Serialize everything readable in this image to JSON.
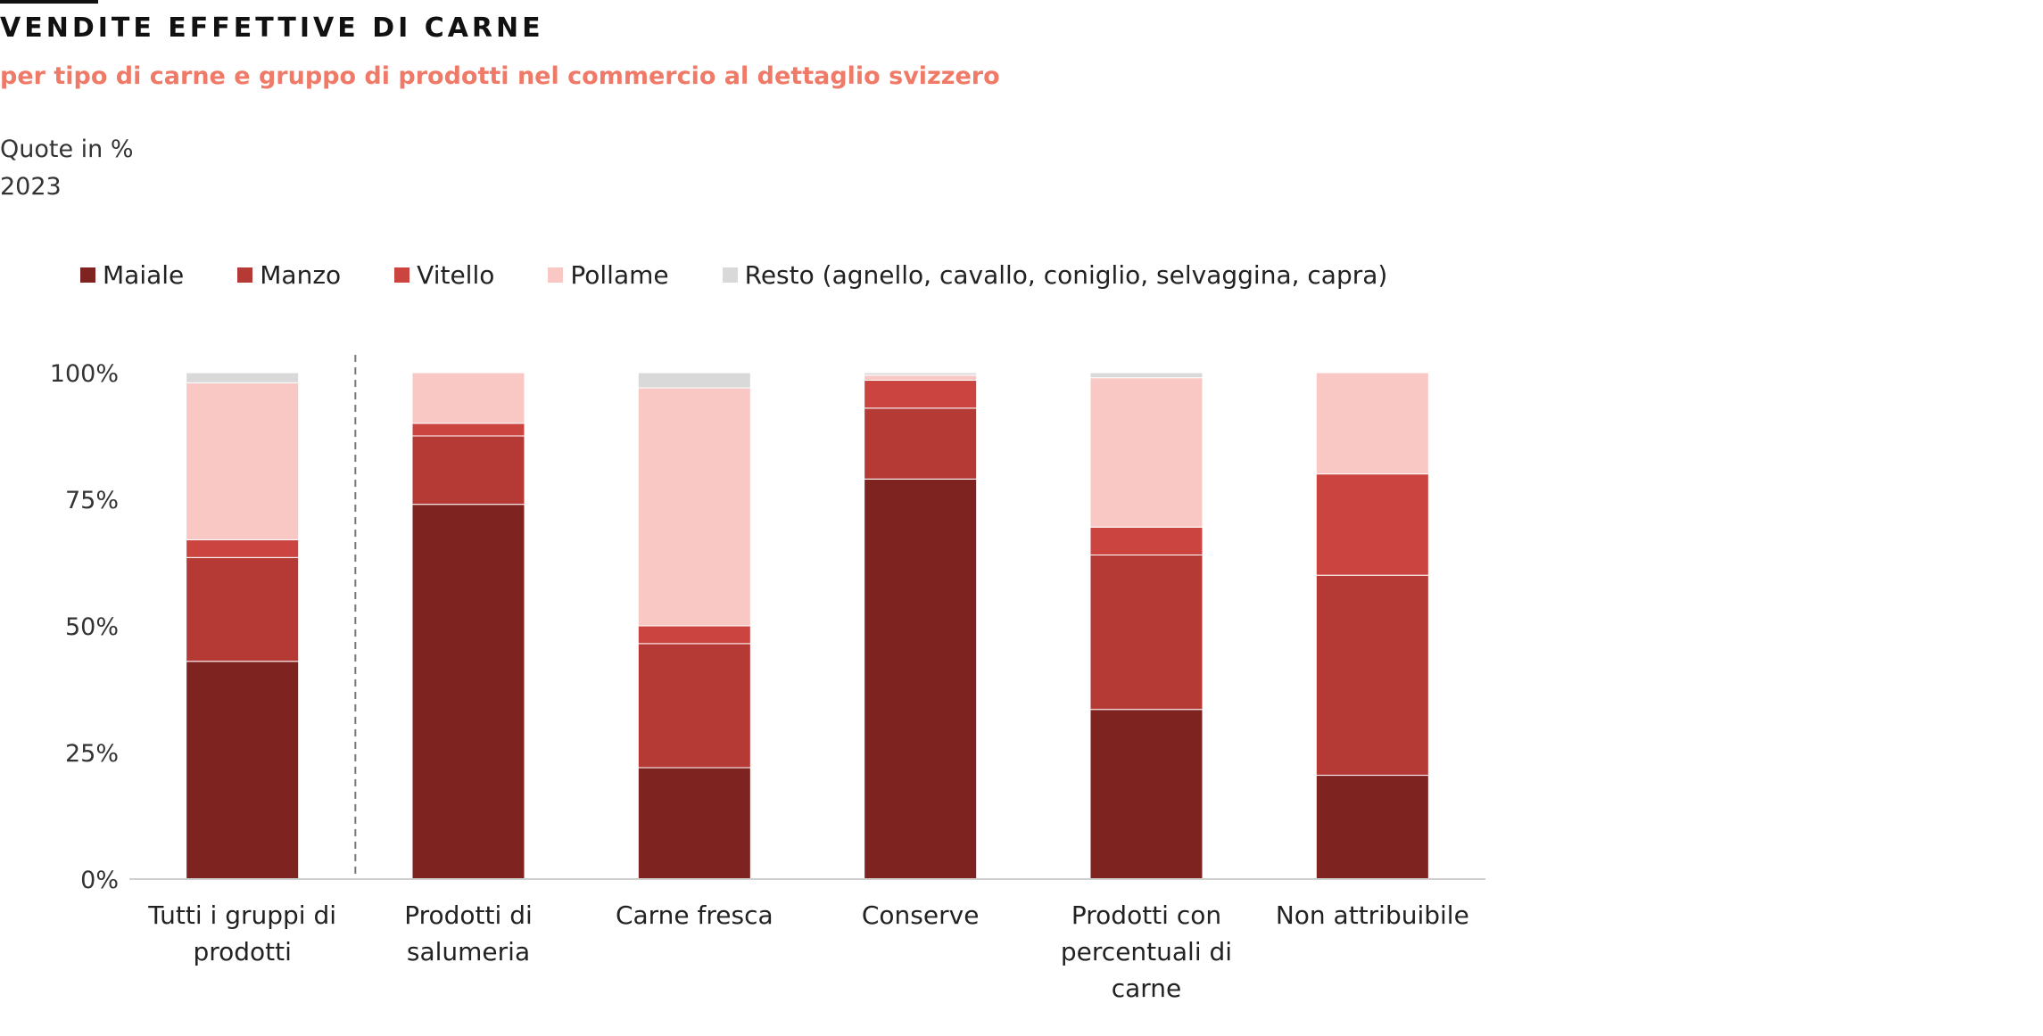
{
  "header": {
    "title": "VENDITE EFFETTIVE DI CARNE",
    "subtitle": "per tipo di carne e gruppo di prodotti nel commercio al dettaglio svizzero",
    "unit": "Quote in %",
    "year": "2023"
  },
  "chart_data": {
    "type": "bar",
    "stacked": true,
    "categories": [
      "Tutti i gruppi di prodotti",
      "Prodotti di salumeria",
      "Carne fresca",
      "Conserve",
      "Prodotti con percentuali di carne",
      "Non attribuibile"
    ],
    "category_lines": [
      [
        "Tutti i gruppi di",
        "prodotti"
      ],
      [
        "Prodotti di",
        "salumeria"
      ],
      [
        "Carne fresca"
      ],
      [
        "Conserve"
      ],
      [
        "Prodotti con",
        "percentuali di",
        "carne"
      ],
      [
        "Non attribuibile"
      ]
    ],
    "series": [
      {
        "name": "Maiale",
        "color": "#7f2321",
        "values": [
          43,
          74,
          22,
          79,
          33.5,
          20.5
        ]
      },
      {
        "name": "Manzo",
        "color": "#b53935",
        "values": [
          20.5,
          13.5,
          24.5,
          14,
          30.5,
          39.5
        ]
      },
      {
        "name": "Vitello",
        "color": "#cb4440",
        "values": [
          3.5,
          2.5,
          3.5,
          5.5,
          5.5,
          20
        ]
      },
      {
        "name": "Pollame",
        "color": "#f9c8c4",
        "values": [
          31,
          10,
          47,
          1,
          29.5,
          20
        ]
      },
      {
        "name": "Resto (agnello, cavallo, coniglio, selvaggina, capra)",
        "color": "#d9d9d9",
        "values": [
          2,
          0,
          3,
          0.5,
          1,
          0
        ]
      }
    ],
    "yticks": [
      "0%",
      "25%",
      "50%",
      "75%",
      "100%"
    ],
    "ylim": [
      0,
      100
    ],
    "legend_position": "top",
    "grid": false,
    "separator_after_category": 0
  }
}
